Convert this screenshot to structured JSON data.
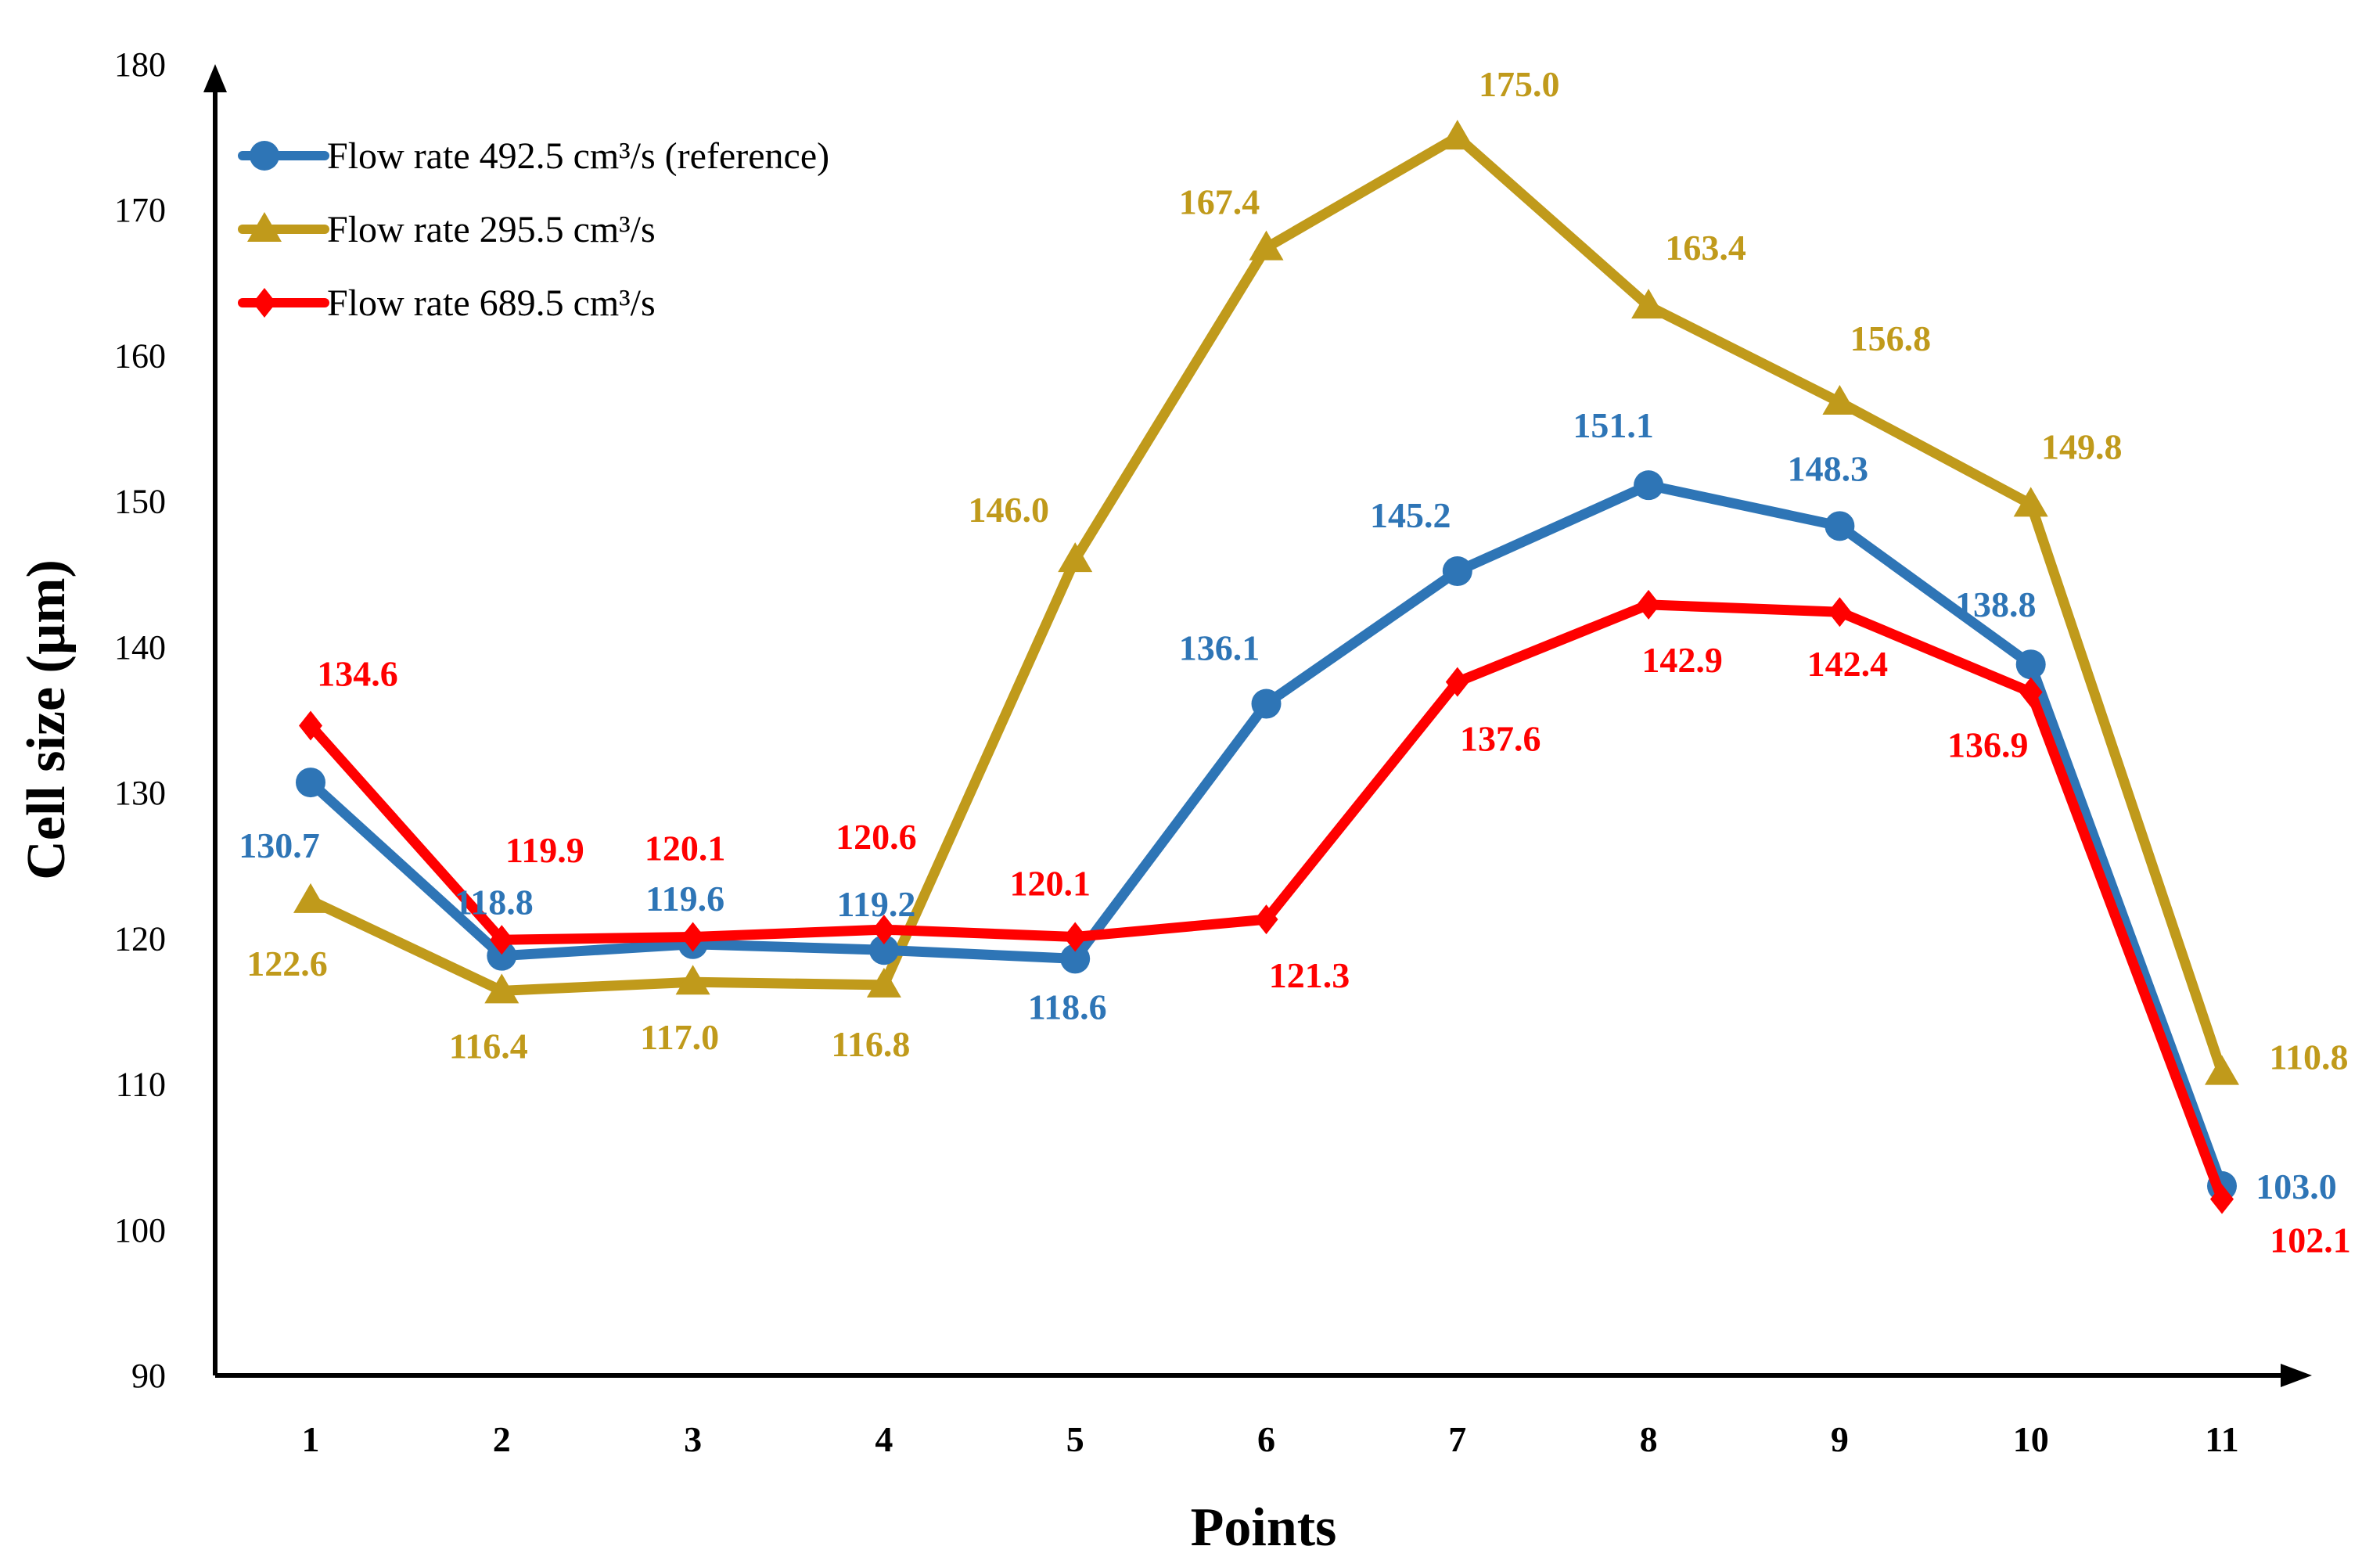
{
  "chart_data": {
    "type": "line",
    "title": "",
    "xlabel": "Points",
    "ylabel": "Cell size (µm)",
    "categories": [
      "1",
      "2",
      "3",
      "4",
      "5",
      "6",
      "7",
      "8",
      "9",
      "10",
      "11"
    ],
    "ylim": [
      90,
      180
    ],
    "yticks": [
      "90",
      "100",
      "110",
      "120",
      "130",
      "140",
      "150",
      "160",
      "170",
      "180"
    ],
    "grid": false,
    "legend_position": "top-left",
    "series": [
      {
        "name": "Flow rate 492.5 cm³/s (reference)",
        "color": "#2E75B6",
        "marker": "circle",
        "values": [
          130.7,
          118.8,
          119.6,
          119.2,
          118.6,
          136.1,
          145.2,
          151.1,
          148.3,
          138.8,
          103.0
        ],
        "labels": [
          "130.7",
          "118.8",
          "119.6",
          "119.2",
          "118.6",
          "136.1",
          "145.2",
          "151.1",
          "148.3",
          "138.8",
          "103.0"
        ]
      },
      {
        "name": "Flow rate 295.5 cm³/s",
        "color": "#C09A1B",
        "marker": "triangle",
        "values": [
          122.6,
          116.4,
          117.0,
          116.8,
          146.0,
          167.4,
          175.0,
          163.4,
          156.8,
          149.8,
          110.8
        ],
        "labels": [
          "122.6",
          "116.4",
          "117.0",
          "116.8",
          "146.0",
          "167.4",
          "175.0",
          "163.4",
          "156.8",
          "149.8",
          "110.8"
        ]
      },
      {
        "name": "Flow rate 689.5 cm³/s",
        "color": "#FF0000",
        "marker": "diamond",
        "values": [
          134.6,
          119.9,
          120.1,
          120.6,
          120.1,
          121.3,
          137.6,
          142.9,
          142.4,
          136.9,
          102.1
        ],
        "labels": [
          "134.6",
          "119.9",
          "120.1",
          "120.6",
          "120.1",
          "121.3",
          "137.6",
          "142.9",
          "142.4",
          "136.9",
          "102.1"
        ]
      }
    ]
  }
}
